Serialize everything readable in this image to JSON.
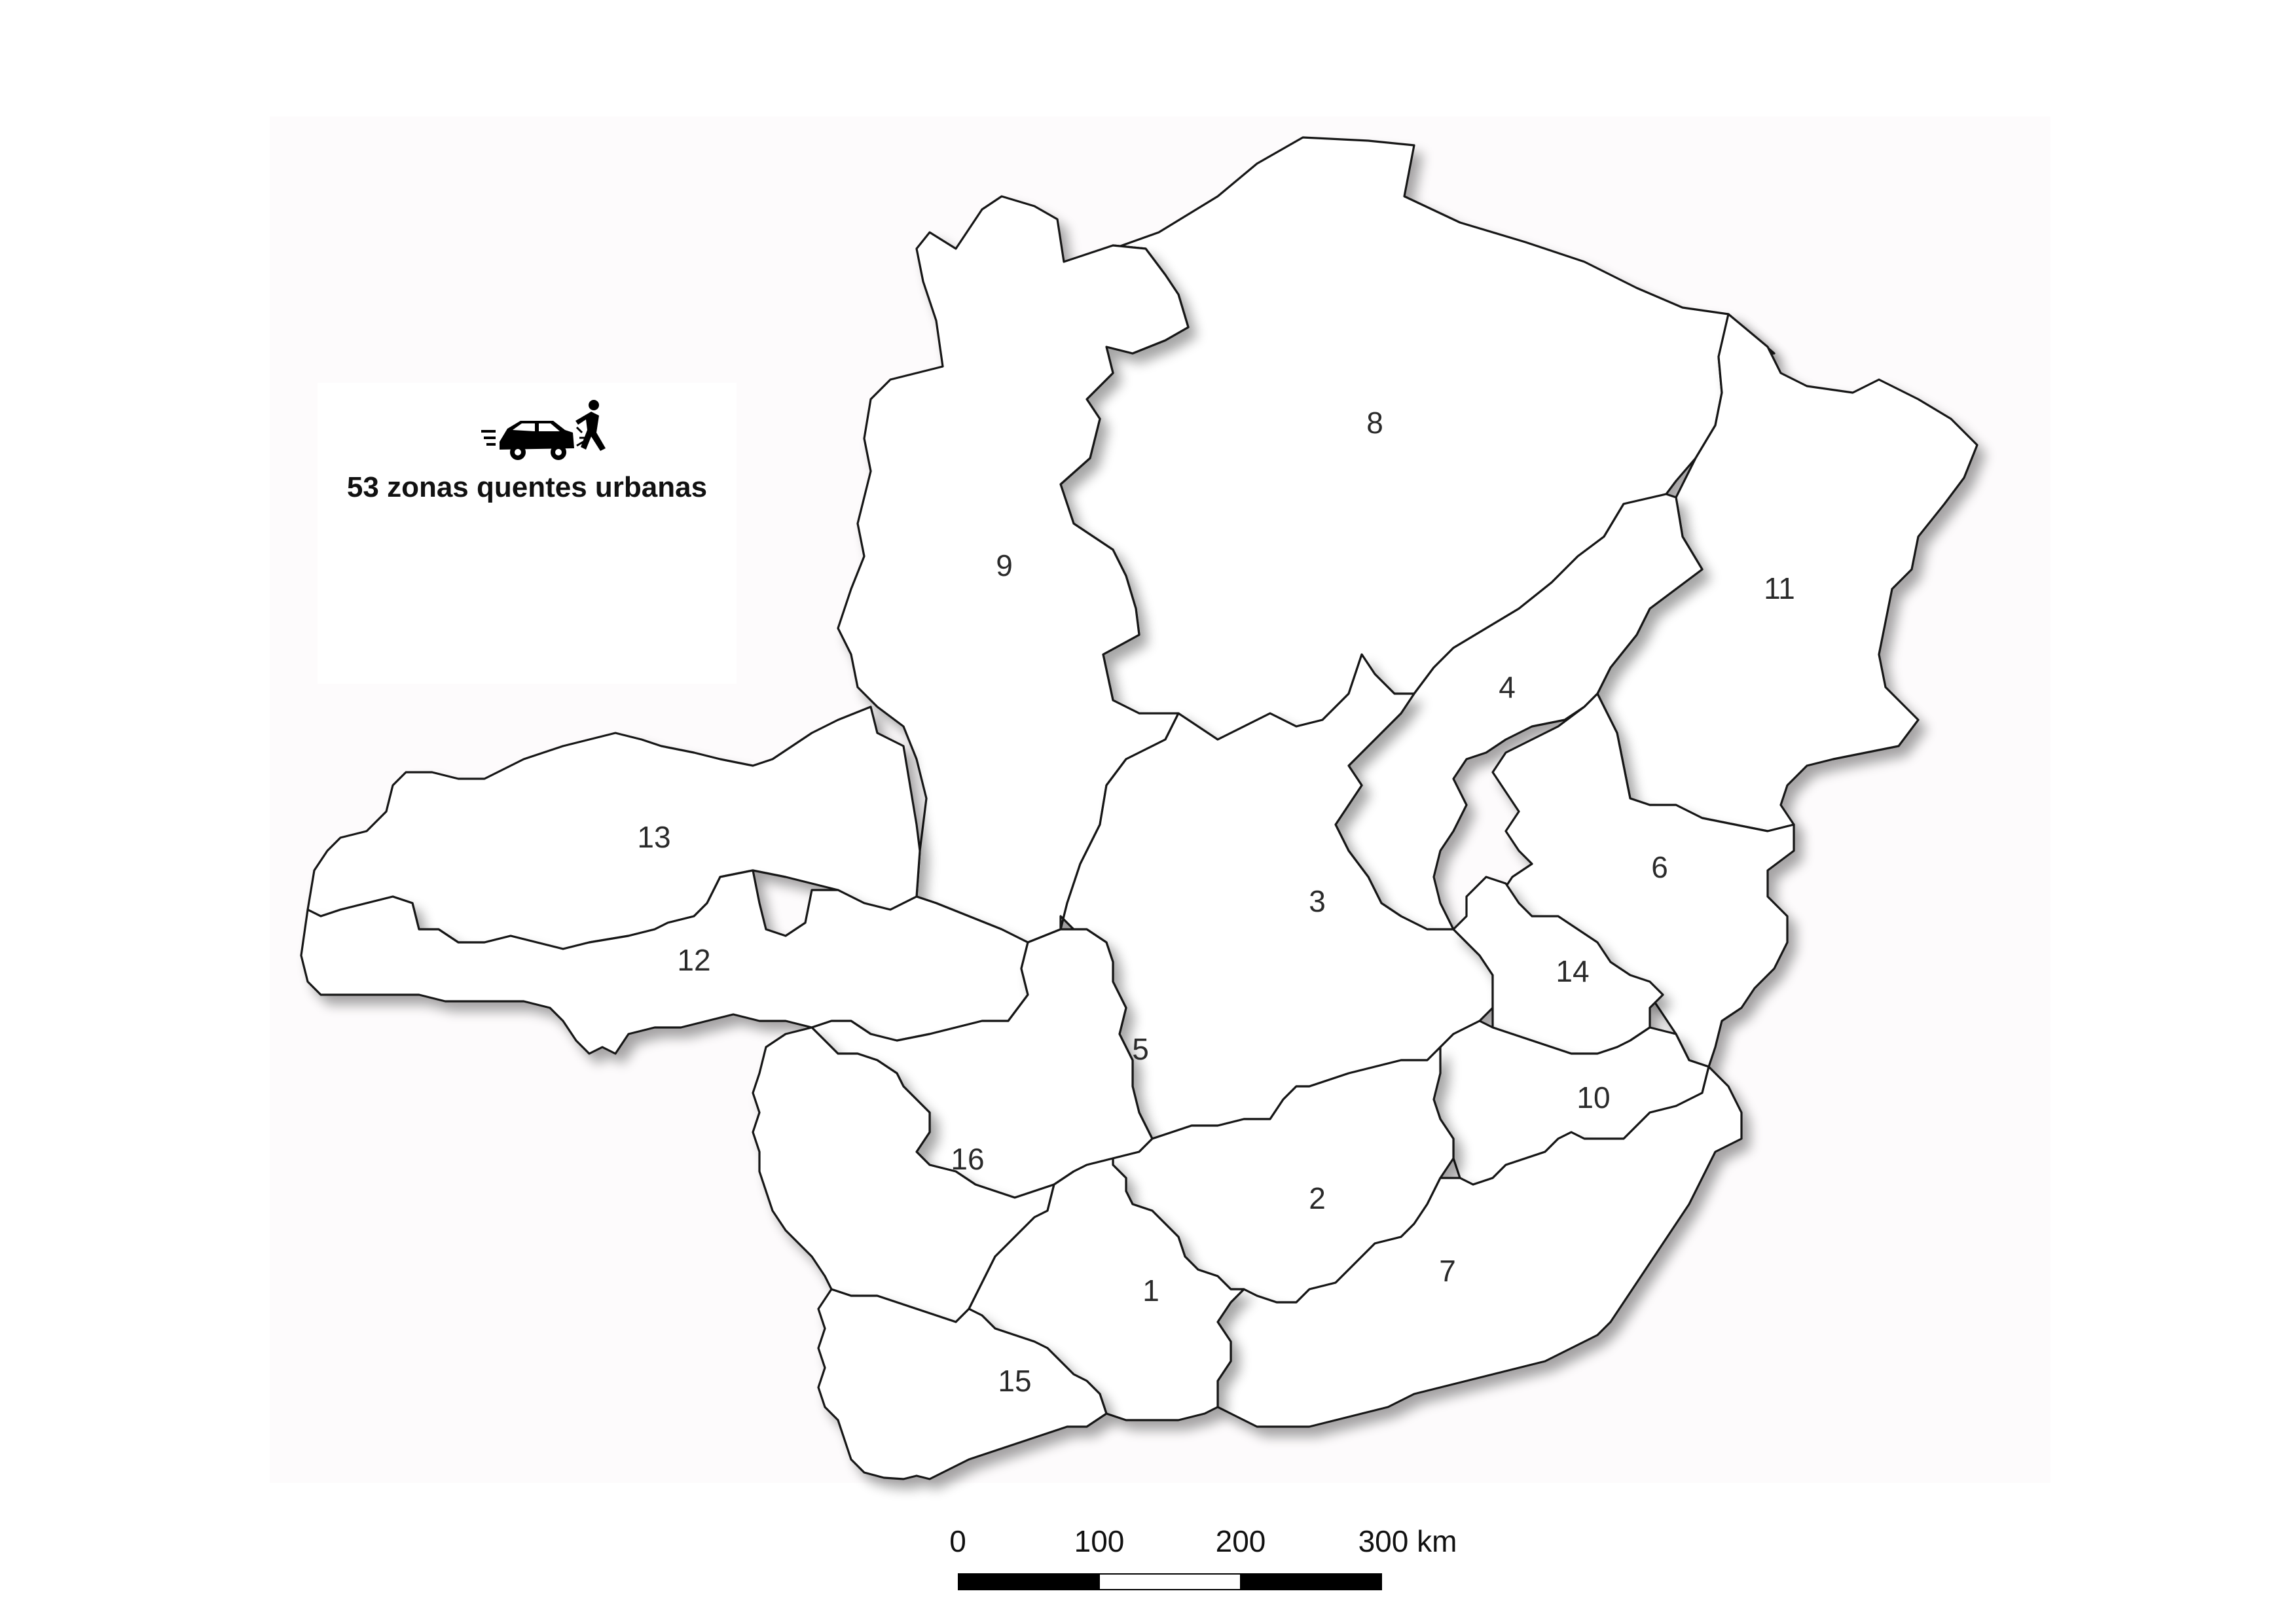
{
  "legend": {
    "icon": "car-pedestrian-accident-icon",
    "text": "53 zonas quentes urbanas"
  },
  "regions": [
    {
      "id": "1",
      "label": "1"
    },
    {
      "id": "2",
      "label": "2"
    },
    {
      "id": "3",
      "label": "3"
    },
    {
      "id": "4",
      "label": "4"
    },
    {
      "id": "5",
      "label": "5"
    },
    {
      "id": "6",
      "label": "6"
    },
    {
      "id": "7",
      "label": "7"
    },
    {
      "id": "8",
      "label": "8"
    },
    {
      "id": "9",
      "label": "9"
    },
    {
      "id": "10",
      "label": "10"
    },
    {
      "id": "11",
      "label": "11"
    },
    {
      "id": "12",
      "label": "12"
    },
    {
      "id": "13",
      "label": "13"
    },
    {
      "id": "14",
      "label": "14"
    },
    {
      "id": "15",
      "label": "15"
    },
    {
      "id": "16",
      "label": "16"
    }
  ],
  "scale_bar": {
    "ticks": [
      "0",
      "100",
      "200",
      "300 km"
    ],
    "segment_colors": [
      "#000000",
      "#ffffff",
      "#000000"
    ]
  },
  "colors": {
    "region_fill": "#ffffff",
    "region_stroke": "#151515",
    "frame_background": "#fdfbfc"
  }
}
